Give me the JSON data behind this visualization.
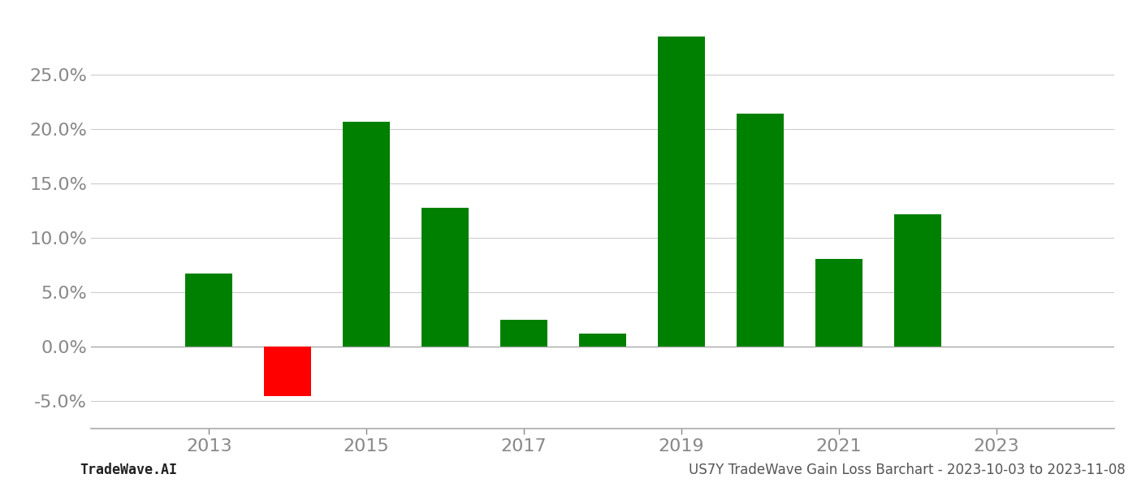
{
  "years": [
    2013,
    2014,
    2015,
    2016,
    2017,
    2018,
    2019,
    2020,
    2021,
    2022
  ],
  "values": [
    0.067,
    -0.045,
    0.207,
    0.128,
    0.025,
    0.012,
    0.285,
    0.214,
    0.081,
    0.122
  ],
  "colors": [
    "#008000",
    "#ff0000",
    "#008000",
    "#008000",
    "#008000",
    "#008000",
    "#008000",
    "#008000",
    "#008000",
    "#008000"
  ],
  "ylim": [
    -0.075,
    0.305
  ],
  "yticks": [
    -0.05,
    0.0,
    0.05,
    0.1,
    0.15,
    0.2,
    0.25
  ],
  "xticks": [
    2013,
    2015,
    2017,
    2019,
    2021,
    2023
  ],
  "footer_left": "TradeWave.AI",
  "footer_right": "US7Y TradeWave Gain Loss Barchart - 2023-10-03 to 2023-11-08",
  "bar_width": 0.6,
  "background_color": "#ffffff",
  "grid_color": "#cccccc",
  "tick_color": "#888888",
  "spine_color": "#aaaaaa",
  "footer_fontsize": 12,
  "tick_fontsize": 16
}
